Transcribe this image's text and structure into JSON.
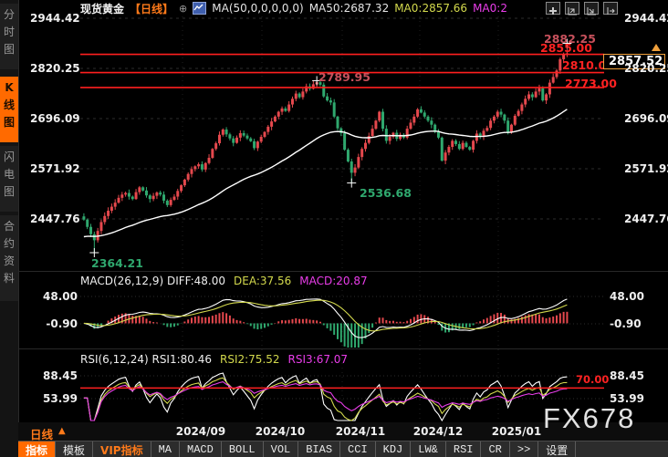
{
  "header": {
    "symbol": "现货黄金",
    "period": "【日线】",
    "plus": "⊕",
    "ma_settings": "MA(50,0,0,0,0,0)",
    "ma50": "MA50:2687.32",
    "ma0_yellow": "MA0:2857.66",
    "ma0_magenta": "MA0:2"
  },
  "sidebar": {
    "items": [
      {
        "label": "分时图",
        "active": false
      },
      {
        "label": "K线图",
        "active": true
      },
      {
        "label": "闪电图",
        "active": false
      },
      {
        "label": "合约资料",
        "active": false
      }
    ]
  },
  "price_box": {
    "value": "2857.52"
  },
  "watermark": "FX678",
  "x_axis": {
    "period_label": "日线",
    "arrow": "▲",
    "labels": [
      "2024/09",
      "2024/10",
      "2024/11",
      "2024/12",
      "2025/01"
    ]
  },
  "toolbar": {
    "items": [
      {
        "label": "指标",
        "style": "active"
      },
      {
        "label": "模板",
        "style": ""
      },
      {
        "label": "VIP指标",
        "style": "vip"
      },
      {
        "label": "MA",
        "style": "mono"
      },
      {
        "label": "MACD",
        "style": "mono"
      },
      {
        "label": "BOLL",
        "style": "mono"
      },
      {
        "label": "VOL",
        "style": "mono"
      },
      {
        "label": "BIAS",
        "style": "mono"
      },
      {
        "label": "CCI",
        "style": "mono"
      },
      {
        "label": "KDJ",
        "style": "mono"
      },
      {
        "label": "LW&",
        "style": "mono"
      },
      {
        "label": "RSI",
        "style": "mono"
      },
      {
        "label": "CR",
        "style": "mono"
      },
      {
        "label": ">>",
        "style": "mono"
      },
      {
        "label": "设置",
        "style": ""
      }
    ]
  },
  "chart_data": {
    "type": "candlestick",
    "symbol": "现货黄金",
    "period": "日线",
    "y_ticks": [
      "2944.42",
      "2820.25",
      "2696.09",
      "2571.92",
      "2447.76"
    ],
    "y_range": [
      2447.76,
      2944.42
    ],
    "x_labels": [
      "2024/09",
      "2024/10",
      "2024/11",
      "2024/12",
      "2025/01"
    ],
    "closes": [
      2446,
      2428,
      2410,
      2395,
      2418,
      2440,
      2455,
      2468,
      2478,
      2488,
      2500,
      2508,
      2512,
      2503,
      2497,
      2514,
      2526,
      2518,
      2506,
      2497,
      2505,
      2513,
      2508,
      2493,
      2482,
      2495,
      2503,
      2517,
      2531,
      2545,
      2559,
      2571,
      2578,
      2583,
      2570,
      2586,
      2599,
      2621,
      2635,
      2656,
      2669,
      2657,
      2647,
      2636,
      2649,
      2660,
      2654,
      2647,
      2640,
      2623,
      2639,
      2651,
      2663,
      2676,
      2689,
      2701,
      2713,
      2721,
      2715,
      2731,
      2745,
      2758,
      2749,
      2763,
      2776,
      2770,
      2781,
      2786,
      2780,
      2751,
      2741,
      2736,
      2701,
      2672,
      2660,
      2619,
      2590,
      2562,
      2575,
      2601,
      2621,
      2636,
      2653,
      2671,
      2691,
      2713,
      2671,
      2641,
      2651,
      2661,
      2646,
      2656,
      2649,
      2671,
      2686,
      2701,
      2719,
      2711,
      2701,
      2691,
      2681,
      2663,
      2649,
      2592,
      2612,
      2626,
      2641,
      2633,
      2621,
      2636,
      2626,
      2619,
      2641,
      2659,
      2651,
      2666,
      2673,
      2691,
      2701,
      2713,
      2706,
      2691,
      2663,
      2681,
      2703,
      2715,
      2731,
      2745,
      2756,
      2749,
      2763,
      2771,
      2741,
      2756,
      2785,
      2799,
      2815,
      2843,
      2856,
      2857.52
    ],
    "ma_period": 50,
    "annotations": [
      {
        "index": 3,
        "price": 2364.21,
        "text": "2364.21",
        "kind": "low"
      },
      {
        "index": 67,
        "price": 2789.95,
        "text": "2789.95",
        "kind": "high"
      },
      {
        "index": 77,
        "price": 2536.68,
        "text": "2536.68",
        "kind": "low"
      },
      {
        "index": 139,
        "price": 2882.25,
        "text": "2882.25",
        "kind": "high"
      }
    ],
    "levels": [
      {
        "price": 2855,
        "label": "2855.00"
      },
      {
        "price": 2810,
        "label": "2810.00"
      },
      {
        "price": 2773,
        "label": "2773.00"
      }
    ],
    "last_price": 2857.52,
    "macd": {
      "title": "MACD(26,12,9) DIFF:48.00",
      "dea_label": "DEA:37.56",
      "macd_label": "MACD:20.87",
      "ticks": [
        48.0,
        -0.9
      ],
      "tick_labels": [
        "48.00",
        "-0.90"
      ]
    },
    "rsi": {
      "title": "RSI(6,12,24) RSI1:80.46",
      "rsi2_label": "RSI2:75.52",
      "rsi3_label": "RSI3:67.07",
      "ticks": [
        88.45,
        53.99
      ],
      "tick_labels": [
        "88.45",
        "53.99"
      ],
      "level": 70,
      "level_label": "70.00"
    },
    "colors": {
      "up": "#e5484d",
      "down": "#2fa86e",
      "ma_line": "#ffffff",
      "diff_line": "#ffffff",
      "dea_line": "#d3d94d",
      "rsi1": "#ffffff",
      "rsi2": "#d3d94d",
      "rsi3": "#ea3dea",
      "level_line": "#ff1f1f",
      "grid": "#2d2d2d",
      "accent_orange": "#ff6a00"
    }
  }
}
